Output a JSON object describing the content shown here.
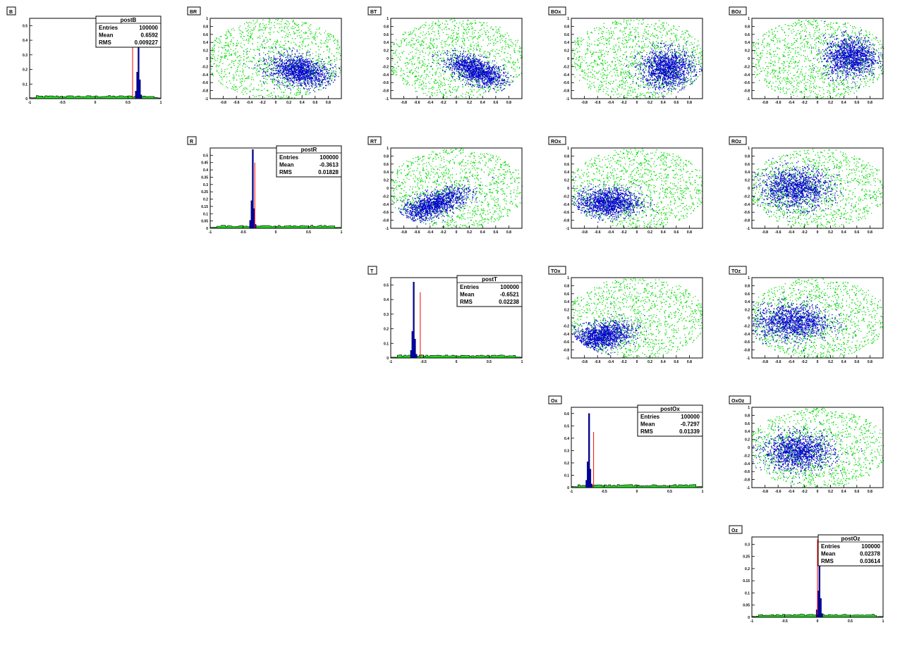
{
  "colors": {
    "scatter_a": "#00dd00",
    "scatter_b": "#0000cc",
    "hist_fill_a": "#22dd22",
    "hist_fill_b": "#0000cc",
    "hist_line": "#ff0000"
  },
  "panels": [
    {
      "name": "B",
      "label": "B",
      "type": "hist",
      "row": 0,
      "col": 0,
      "stats": {
        "title": "postB",
        "entries": "100000",
        "mean": "0.6592",
        "rms": "0.009227"
      },
      "ylim": [
        0,
        0.55
      ],
      "yticks": [
        "0",
        "0.1",
        "0.2",
        "0.3",
        "0.4",
        "0.5"
      ],
      "peak_b": {
        "x": 0.66,
        "h": 0.52
      },
      "peak_r": {
        "x": 0.57,
        "h": 0.45
      }
    },
    {
      "name": "BR",
      "label": "BR",
      "type": "scatter",
      "row": 0,
      "col": 1,
      "blob": {
        "cx": 0.35,
        "cy": -0.3,
        "rx": 0.55,
        "ry": 0.4,
        "angle": -30
      }
    },
    {
      "name": "BT",
      "label": "BT",
      "type": "scatter",
      "row": 0,
      "col": 2,
      "blob": {
        "cx": 0.3,
        "cy": -0.3,
        "rx": 0.6,
        "ry": 0.3,
        "angle": -40
      }
    },
    {
      "name": "BOx",
      "label": "BOx",
      "type": "scatter",
      "row": 0,
      "col": 3,
      "blob": {
        "cx": 0.45,
        "cy": -0.25,
        "rx": 0.45,
        "ry": 0.55,
        "angle": 0
      }
    },
    {
      "name": "BOz",
      "label": "BOz",
      "type": "scatter",
      "row": 0,
      "col": 4,
      "blob": {
        "cx": 0.5,
        "cy": 0.05,
        "rx": 0.45,
        "ry": 0.55,
        "angle": 0
      }
    },
    {
      "name": "R",
      "label": "R",
      "type": "hist",
      "row": 1,
      "col": 1,
      "stats": {
        "title": "postR",
        "entries": "100000",
        "mean": "-0.3613",
        "rms": "0.01828"
      },
      "ylim": [
        0,
        0.55
      ],
      "yticks": [
        "0",
        "0.05",
        "0.1",
        "0.15",
        "0.2",
        "0.25",
        "0.3",
        "0.35",
        "0.4",
        "0.45",
        "0.5"
      ],
      "peak_b": {
        "x": -0.35,
        "h": 0.54
      },
      "peak_r": {
        "x": -0.32,
        "h": 0.45
      }
    },
    {
      "name": "RT",
      "label": "RT",
      "type": "scatter",
      "row": 1,
      "col": 2,
      "blob": {
        "cx": -0.35,
        "cy": -0.4,
        "rx": 0.7,
        "ry": 0.3,
        "angle": 35
      }
    },
    {
      "name": "ROx",
      "label": "ROx",
      "type": "scatter",
      "row": 1,
      "col": 3,
      "blob": {
        "cx": -0.45,
        "cy": -0.35,
        "rx": 0.55,
        "ry": 0.4,
        "angle": 0
      }
    },
    {
      "name": "ROz",
      "label": "ROz",
      "type": "scatter",
      "row": 1,
      "col": 4,
      "blob": {
        "cx": -0.35,
        "cy": 0,
        "rx": 0.6,
        "ry": 0.55,
        "angle": 0
      }
    },
    {
      "name": "T",
      "label": "T",
      "type": "hist",
      "row": 2,
      "col": 2,
      "stats": {
        "title": "postT",
        "entries": "100000",
        "mean": "-0.6521",
        "rms": "0.02238"
      },
      "ylim": [
        0,
        0.55
      ],
      "yticks": [
        "0",
        "0.1",
        "0.2",
        "0.3",
        "0.4",
        "0.5"
      ],
      "peak_b": {
        "x": -0.65,
        "h": 0.52
      },
      "peak_r": {
        "x": -0.55,
        "h": 0.45
      }
    },
    {
      "name": "TOx",
      "label": "TOx",
      "type": "scatter",
      "row": 2,
      "col": 3,
      "blob": {
        "cx": -0.55,
        "cy": -0.45,
        "rx": 0.55,
        "ry": 0.35,
        "angle": 25
      }
    },
    {
      "name": "TOz",
      "label": "TOz",
      "type": "scatter",
      "row": 2,
      "col": 4,
      "blob": {
        "cx": -0.4,
        "cy": -0.1,
        "rx": 0.65,
        "ry": 0.5,
        "angle": 0
      }
    },
    {
      "name": "Ox",
      "label": "Ox",
      "type": "hist",
      "row": 3,
      "col": 3,
      "stats": {
        "title": "postOx",
        "entries": "100000",
        "mean": "-0.7297",
        "rms": "0.01339"
      },
      "ylim": [
        0,
        0.65
      ],
      "yticks": [
        "0",
        "0.1",
        "0.2",
        "0.3",
        "0.4",
        "0.5",
        "0.6"
      ],
      "peak_b": {
        "x": -0.73,
        "h": 0.6
      },
      "peak_r": {
        "x": -0.66,
        "h": 0.45
      }
    },
    {
      "name": "OxOz",
      "label": "OxOz",
      "type": "scatter",
      "row": 3,
      "col": 4,
      "blob": {
        "cx": -0.3,
        "cy": -0.1,
        "rx": 0.6,
        "ry": 0.5,
        "angle": 0
      }
    },
    {
      "name": "Oz",
      "label": "Oz",
      "type": "hist",
      "row": 4,
      "col": 4,
      "stats": {
        "title": "postOz",
        "entries": "100000",
        "mean": "0.02378",
        "rms": "0.03614"
      },
      "ylim": [
        0,
        0.33
      ],
      "yticks": [
        "0",
        "0.05",
        "0.1",
        "0.15",
        "0.2",
        "0.25",
        "0.3"
      ],
      "peak_b": {
        "x": 0.03,
        "h": 0.31
      },
      "peak_r": {
        "x": 0.0,
        "h": 0.32
      }
    }
  ],
  "chart_data": [
    {
      "type": "bar",
      "label": "B",
      "title": "postB",
      "xlim": [
        -1,
        1
      ],
      "ylim": [
        0,
        0.55
      ],
      "stats": {
        "Entries": 100000,
        "Mean": 0.6592,
        "RMS": 0.009227
      }
    },
    {
      "type": "bar",
      "label": "R",
      "title": "postR",
      "xlim": [
        -1,
        1
      ],
      "ylim": [
        0,
        0.55
      ],
      "stats": {
        "Entries": 100000,
        "Mean": -0.3613,
        "RMS": 0.01828
      }
    },
    {
      "type": "bar",
      "label": "T",
      "title": "postT",
      "xlim": [
        -1,
        1
      ],
      "ylim": [
        0,
        0.55
      ],
      "stats": {
        "Entries": 100000,
        "Mean": -0.6521,
        "RMS": 0.02238
      }
    },
    {
      "type": "bar",
      "label": "Ox",
      "title": "postOx",
      "xlim": [
        -1,
        1
      ],
      "ylim": [
        0,
        0.65
      ],
      "stats": {
        "Entries": 100000,
        "Mean": -0.7297,
        "RMS": 0.01339
      }
    },
    {
      "type": "bar",
      "label": "Oz",
      "title": "postOz",
      "xlim": [
        -1,
        1
      ],
      "ylim": [
        0,
        0.33
      ],
      "stats": {
        "Entries": 100000,
        "Mean": 0.02378,
        "RMS": 0.03614
      }
    },
    {
      "type": "scatter",
      "label": "BR",
      "xlim": [
        -1,
        1
      ],
      "ylim": [
        -1,
        1
      ]
    },
    {
      "type": "scatter",
      "label": "BT",
      "xlim": [
        -1,
        1
      ],
      "ylim": [
        -1,
        1
      ]
    },
    {
      "type": "scatter",
      "label": "BOx",
      "xlim": [
        -1,
        1
      ],
      "ylim": [
        -1,
        1
      ]
    },
    {
      "type": "scatter",
      "label": "BOz",
      "xlim": [
        -1,
        1
      ],
      "ylim": [
        -1,
        1
      ]
    },
    {
      "type": "scatter",
      "label": "RT",
      "xlim": [
        -1,
        1
      ],
      "ylim": [
        -1,
        1
      ]
    },
    {
      "type": "scatter",
      "label": "ROx",
      "xlim": [
        -1,
        1
      ],
      "ylim": [
        -1,
        1
      ]
    },
    {
      "type": "scatter",
      "label": "ROz",
      "xlim": [
        -1,
        1
      ],
      "ylim": [
        -1,
        1
      ]
    },
    {
      "type": "scatter",
      "label": "TOx",
      "xlim": [
        -1,
        1
      ],
      "ylim": [
        -1,
        1
      ]
    },
    {
      "type": "scatter",
      "label": "TOz",
      "xlim": [
        -1,
        1
      ],
      "ylim": [
        -1,
        1
      ]
    },
    {
      "type": "scatter",
      "label": "OxOz",
      "xlim": [
        -1,
        1
      ],
      "ylim": [
        -1,
        1
      ]
    }
  ],
  "xticks_hist": [
    "-1",
    "-0.5",
    "0",
    "0.5",
    "1"
  ],
  "xticks_scatter": [
    "-0.8",
    "-0.6",
    "-0.4",
    "-0.2",
    "0",
    "0.2",
    "0.4",
    "0.6",
    "0.8"
  ],
  "yticks_scatter": [
    "-1",
    "-0.8",
    "-0.6",
    "-0.4",
    "-0.2",
    "0",
    "0.2",
    "0.4",
    "0.6",
    "0.8",
    "1"
  ],
  "stat_labels": {
    "entries": "Entries",
    "mean": "Mean",
    "rms": "RMS"
  }
}
